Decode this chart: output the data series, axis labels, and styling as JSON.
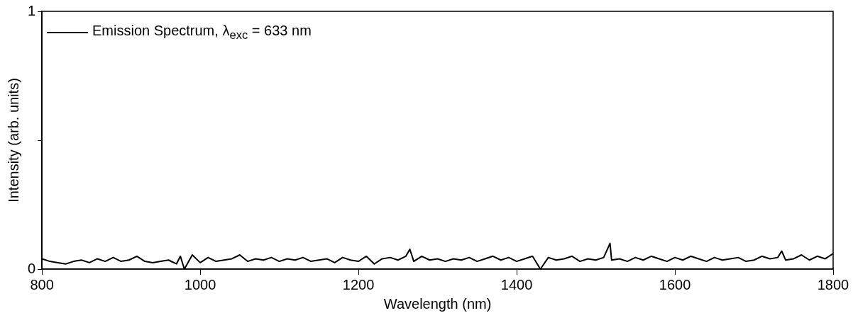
{
  "chart_data": {
    "type": "line",
    "xlabel": "Wavelength (nm)",
    "ylabel": "Intensity (arb. units)",
    "x": [
      800,
      810,
      820,
      830,
      840,
      850,
      860,
      870,
      880,
      890,
      900,
      910,
      920,
      930,
      940,
      950,
      960,
      970,
      975,
      980,
      990,
      1000,
      1010,
      1020,
      1030,
      1040,
      1050,
      1060,
      1070,
      1080,
      1090,
      1100,
      1110,
      1120,
      1130,
      1140,
      1150,
      1160,
      1170,
      1180,
      1190,
      1200,
      1210,
      1220,
      1230,
      1240,
      1250,
      1260,
      1265,
      1270,
      1280,
      1290,
      1300,
      1310,
      1320,
      1330,
      1340,
      1350,
      1360,
      1370,
      1380,
      1390,
      1400,
      1410,
      1420,
      1430,
      1440,
      1450,
      1460,
      1470,
      1480,
      1490,
      1500,
      1510,
      1518,
      1520,
      1530,
      1540,
      1550,
      1560,
      1570,
      1580,
      1590,
      1600,
      1610,
      1620,
      1630,
      1640,
      1650,
      1660,
      1670,
      1680,
      1690,
      1700,
      1710,
      1720,
      1730,
      1735,
      1740,
      1750,
      1760,
      1770,
      1780,
      1790,
      1800
    ],
    "series": [
      {
        "name": "Emission Spectrum, λ$_{exc}$ = 633 nm",
        "color": "#000000",
        "values": [
          0.04,
          0.03,
          0.025,
          0.02,
          0.03,
          0.035,
          0.025,
          0.04,
          0.03,
          0.045,
          0.03,
          0.035,
          0.05,
          0.03,
          0.025,
          0.03,
          0.035,
          0.02,
          0.05,
          0.0,
          0.055,
          0.025,
          0.045,
          0.03,
          0.035,
          0.04,
          0.055,
          0.03,
          0.04,
          0.035,
          0.045,
          0.03,
          0.04,
          0.035,
          0.045,
          0.03,
          0.035,
          0.04,
          0.025,
          0.045,
          0.035,
          0.03,
          0.05,
          0.02,
          0.04,
          0.045,
          0.035,
          0.05,
          0.077,
          0.03,
          0.05,
          0.035,
          0.04,
          0.03,
          0.04,
          0.035,
          0.045,
          0.03,
          0.04,
          0.05,
          0.035,
          0.045,
          0.03,
          0.04,
          0.05,
          0.0,
          0.045,
          0.035,
          0.04,
          0.05,
          0.03,
          0.04,
          0.035,
          0.045,
          0.1,
          0.035,
          0.04,
          0.03,
          0.045,
          0.035,
          0.05,
          0.04,
          0.03,
          0.045,
          0.035,
          0.05,
          0.04,
          0.03,
          0.045,
          0.035,
          0.04,
          0.045,
          0.03,
          0.035,
          0.05,
          0.04,
          0.045,
          0.07,
          0.035,
          0.04,
          0.055,
          0.035,
          0.05,
          0.04,
          0.06
        ]
      }
    ],
    "xlim": [
      800,
      1800
    ],
    "xticks": [
      800,
      1000,
      1200,
      1400,
      1600,
      1800
    ],
    "ylim": [
      0,
      1
    ],
    "yticks": [
      0,
      {
        "value": 0.5,
        "label": null
      },
      1
    ],
    "legend": "top left",
    "grid": false,
    "marker": "none",
    "line_style": "solid"
  }
}
